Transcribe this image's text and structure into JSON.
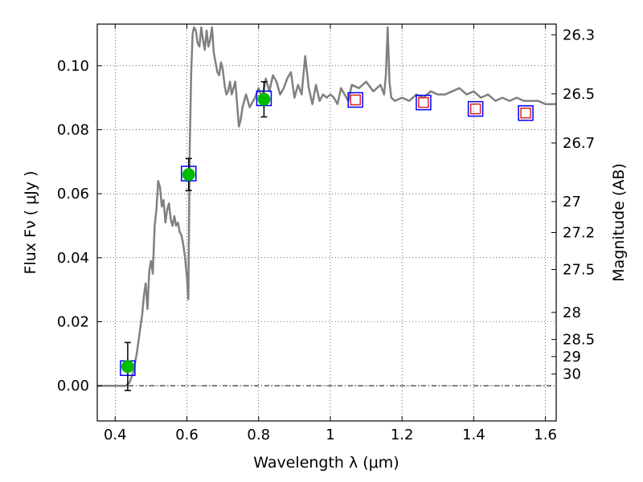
{
  "chart_data": {
    "type": "scatter",
    "xlabel": "Wavelength  λ (μm)",
    "ylabel": "Flux  Fν  ( μJy )",
    "y2label": "Magnitude (AB)",
    "xlim": [
      0.35,
      1.63
    ],
    "ylim": [
      -0.011,
      0.113
    ],
    "x_ticks": [
      0.4,
      0.6,
      0.8,
      1.0,
      1.2,
      1.4,
      1.6
    ],
    "x_tick_labels": [
      "0.4",
      "0.6",
      "0.8",
      "1",
      "1.2",
      "1.4",
      "1.6"
    ],
    "y_ticks": [
      0.0,
      0.02,
      0.04,
      0.06,
      0.08,
      0.1
    ],
    "y_tick_labels": [
      "0.00",
      "0.02",
      "0.04",
      "0.06",
      "0.08",
      "0.10"
    ],
    "mag_ticks": [
      26.3,
      26.5,
      26.7,
      27,
      27.2,
      27.5,
      28,
      28.5,
      29,
      30
    ],
    "mag_tick_labels": [
      "26.3",
      "26.5",
      "26.7",
      "27",
      "27.2",
      "27.5",
      "28",
      "28.5",
      "29",
      "30"
    ],
    "grid": true,
    "series": [
      {
        "style": "line",
        "color": "#808080",
        "x": [
          0.35,
          0.43,
          0.44,
          0.45,
          0.46,
          0.47,
          0.475,
          0.48,
          0.485,
          0.49,
          0.495,
          0.5,
          0.505,
          0.51,
          0.515,
          0.52,
          0.525,
          0.53,
          0.535,
          0.54,
          0.545,
          0.55,
          0.555,
          0.56,
          0.565,
          0.57,
          0.575,
          0.58,
          0.585,
          0.59,
          0.595,
          0.6,
          0.604,
          0.608,
          0.612,
          0.616,
          0.62,
          0.625,
          0.63,
          0.635,
          0.64,
          0.645,
          0.65,
          0.655,
          0.66,
          0.665,
          0.67,
          0.675,
          0.68,
          0.685,
          0.69,
          0.695,
          0.7,
          0.705,
          0.71,
          0.715,
          0.72,
          0.725,
          0.73,
          0.735,
          0.74,
          0.745,
          0.75,
          0.755,
          0.76,
          0.765,
          0.77,
          0.775,
          0.78,
          0.79,
          0.8,
          0.81,
          0.82,
          0.83,
          0.84,
          0.85,
          0.86,
          0.87,
          0.88,
          0.89,
          0.9,
          0.91,
          0.92,
          0.93,
          0.94,
          0.95,
          0.96,
          0.97,
          0.98,
          0.99,
          1.0,
          1.01,
          1.02,
          1.03,
          1.04,
          1.05,
          1.06,
          1.08,
          1.1,
          1.12,
          1.14,
          1.15,
          1.155,
          1.16,
          1.165,
          1.17,
          1.18,
          1.2,
          1.22,
          1.24,
          1.26,
          1.28,
          1.3,
          1.32,
          1.34,
          1.36,
          1.38,
          1.4,
          1.42,
          1.44,
          1.46,
          1.48,
          1.5,
          1.52,
          1.54,
          1.56,
          1.58,
          1.6,
          1.63
        ],
        "y": [
          0.0,
          0.0,
          0.001,
          0.004,
          0.01,
          0.018,
          0.022,
          0.028,
          0.032,
          0.024,
          0.036,
          0.039,
          0.035,
          0.05,
          0.055,
          0.064,
          0.062,
          0.056,
          0.058,
          0.051,
          0.055,
          0.057,
          0.052,
          0.05,
          0.053,
          0.05,
          0.051,
          0.048,
          0.047,
          0.044,
          0.04,
          0.034,
          0.027,
          0.075,
          0.098,
          0.11,
          0.112,
          0.111,
          0.107,
          0.106,
          0.112,
          0.108,
          0.105,
          0.111,
          0.106,
          0.108,
          0.112,
          0.104,
          0.101,
          0.098,
          0.097,
          0.101,
          0.099,
          0.094,
          0.091,
          0.092,
          0.095,
          0.091,
          0.093,
          0.095,
          0.088,
          0.081,
          0.083,
          0.087,
          0.089,
          0.091,
          0.089,
          0.087,
          0.088,
          0.09,
          0.093,
          0.09,
          0.096,
          0.092,
          0.097,
          0.095,
          0.091,
          0.093,
          0.096,
          0.098,
          0.09,
          0.094,
          0.091,
          0.103,
          0.093,
          0.088,
          0.094,
          0.089,
          0.091,
          0.09,
          0.091,
          0.09,
          0.088,
          0.093,
          0.091,
          0.089,
          0.094,
          0.093,
          0.095,
          0.092,
          0.094,
          0.091,
          0.097,
          0.112,
          0.095,
          0.09,
          0.089,
          0.09,
          0.089,
          0.091,
          0.09,
          0.092,
          0.091,
          0.091,
          0.092,
          0.093,
          0.091,
          0.092,
          0.09,
          0.091,
          0.089,
          0.09,
          0.089,
          0.09,
          0.089,
          0.089,
          0.089,
          0.088,
          0.088
        ]
      },
      {
        "style": "square",
        "edge_color": "#0000ff",
        "x": [
          0.435,
          0.605,
          0.815,
          1.07,
          1.26,
          1.405,
          1.545
        ],
        "y": [
          0.0055,
          0.0663,
          0.0898,
          0.0893,
          0.0885,
          0.0865,
          0.0852
        ]
      },
      {
        "style": "square",
        "edge_color": "#dd2222",
        "x": [
          1.07,
          1.26,
          1.405,
          1.545
        ],
        "y": [
          0.0893,
          0.0885,
          0.0865,
          0.0852
        ]
      },
      {
        "style": "circle-errorbar",
        "color": "#00bb00",
        "x": [
          0.435,
          0.605,
          0.815
        ],
        "y": [
          0.006,
          0.066,
          0.0895
        ],
        "yerr": [
          0.0075,
          0.005,
          0.0055
        ]
      }
    ]
  }
}
